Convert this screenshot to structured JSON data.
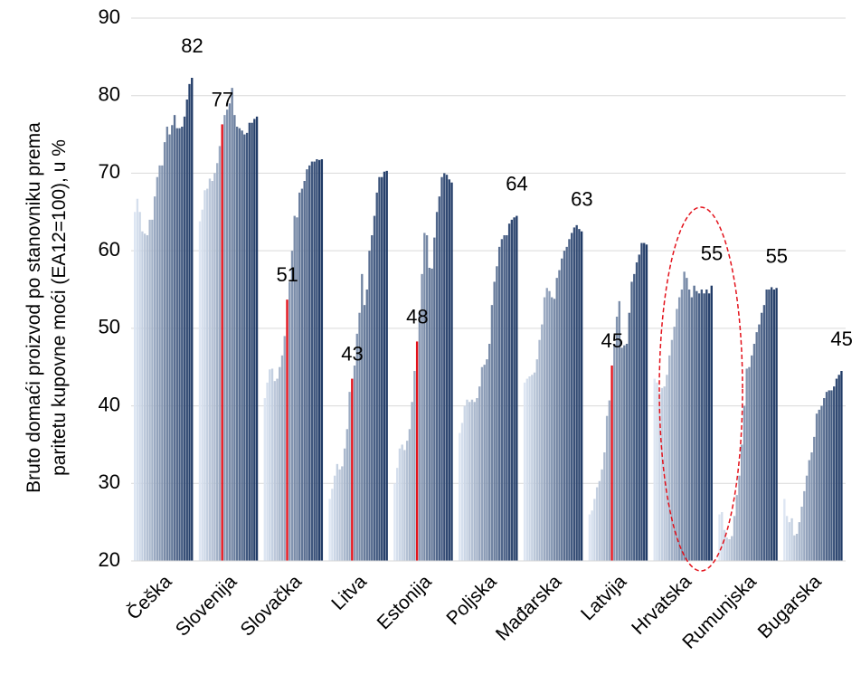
{
  "chart_data": {
    "type": "grouped-bar",
    "ylabel": [
      "Bruto domaći proizvod po stanovniku prema",
      "paritetu kupovne moći (EA12=100), u %"
    ],
    "ylim": [
      20,
      90
    ],
    "yticks": [
      20,
      30,
      40,
      50,
      60,
      70,
      80,
      90
    ],
    "grid": true,
    "colors": [
      "#dde6f3",
      "#1f3a66"
    ],
    "highlight_color": "#e3121b",
    "groups": [
      {
        "name": "Češka",
        "label": 82,
        "highlight": null,
        "values": [
          65,
          66.7,
          65,
          62.5,
          62.2,
          62,
          64,
          64,
          67,
          69.5,
          71,
          71,
          74,
          76,
          75,
          76.2,
          77.5,
          75.8,
          75.8,
          76,
          77.3,
          79.5,
          81.5,
          82.3
        ]
      },
      {
        "name": "Slovenija",
        "label": 77,
        "highlight": 9,
        "values": [
          63.8,
          65.3,
          67.8,
          68,
          69.3,
          69,
          70,
          71.3,
          73.5,
          76.3,
          77.5,
          78.2,
          79,
          81,
          77.5,
          76,
          75.8,
          75.5,
          75,
          75.2,
          76.5,
          76.5,
          77,
          77.3
        ]
      },
      {
        "name": "Slovačka",
        "label": 51,
        "highlight": 9,
        "values": [
          41,
          43,
          44.7,
          44.8,
          43.2,
          43.5,
          45,
          46.5,
          49,
          53.7,
          56,
          60,
          64.5,
          64.3,
          67.5,
          68,
          69,
          70.5,
          71,
          71.5,
          71.5,
          71.8,
          71.7,
          71.8
        ]
      },
      {
        "name": "Litva",
        "label": 43,
        "highlight": 9,
        "values": [
          28,
          29.3,
          31,
          32.5,
          31.8,
          32.2,
          34.5,
          37,
          41.8,
          43.5,
          45.2,
          49.3,
          52,
          57,
          53,
          55,
          60,
          62,
          64.5,
          67.5,
          69.5,
          69.5,
          70.2,
          70.3
        ]
      },
      {
        "name": "Estonija",
        "label": 48,
        "highlight": 9,
        "values": [
          30,
          32,
          34.5,
          35,
          34.3,
          35.5,
          37,
          40.5,
          44.5,
          48.3,
          52,
          57,
          62.3,
          62,
          57.8,
          57.7,
          61.7,
          65,
          67,
          69.5,
          70,
          69.8,
          69.2,
          68.8
        ]
      },
      {
        "name": "Poljska",
        "label": 64,
        "highlight": null,
        "values": [
          36.5,
          37.8,
          40,
          40.8,
          40.5,
          40.8,
          40.5,
          41,
          42.5,
          45,
          45.3,
          46,
          48,
          53,
          56,
          58,
          60.5,
          61.5,
          62,
          62,
          63.5,
          64,
          64.3,
          64.5
        ]
      },
      {
        "name": "Mađarska",
        "label": 63,
        "highlight": null,
        "values": [
          43,
          43.5,
          43.8,
          44,
          44.3,
          46,
          48.5,
          50.5,
          54,
          55.2,
          54.8,
          54,
          53.8,
          56.5,
          57.5,
          59,
          60,
          60.5,
          61.5,
          62.3,
          63,
          63.3,
          62.8,
          62.5
        ]
      },
      {
        "name": "Latvija",
        "label": 45,
        "highlight": 9,
        "values": [
          26,
          26.5,
          28,
          29.5,
          30.3,
          31.8,
          34,
          38.7,
          40.7,
          45.2,
          48,
          51.5,
          53.5,
          47.5,
          47.8,
          48,
          52,
          56,
          57,
          58.5,
          59.5,
          61,
          61,
          60.8
        ]
      },
      {
        "name": "Hrvatska",
        "label": 55,
        "highlight": null,
        "values": [
          43.5,
          43,
          41.7,
          42.3,
          42.5,
          44,
          46.5,
          48.5,
          50.2,
          52.5,
          54,
          55,
          57.3,
          56.5,
          55,
          54,
          55.5,
          54.8,
          54.5,
          55,
          54.5,
          55,
          54.5,
          55.5
        ]
      },
      {
        "name": "Rumunjska",
        "label": 55,
        "highlight": null,
        "values": [
          26,
          26.3,
          24,
          23,
          22.8,
          23.2,
          25.8,
          28.5,
          31,
          35,
          40,
          44.8,
          45,
          46.5,
          48,
          49.5,
          50.5,
          52,
          53,
          55,
          55,
          55.3,
          55,
          55.2
        ]
      },
      {
        "name": "Bugarska",
        "label": 45,
        "highlight": null,
        "values": [
          28,
          25.8,
          25,
          25.5,
          23.3,
          23.5,
          25,
          27,
          29,
          31,
          33,
          34,
          36,
          39,
          39.5,
          40,
          41,
          41.8,
          42,
          42,
          42.5,
          43.5,
          44,
          44.5
        ]
      }
    ]
  }
}
